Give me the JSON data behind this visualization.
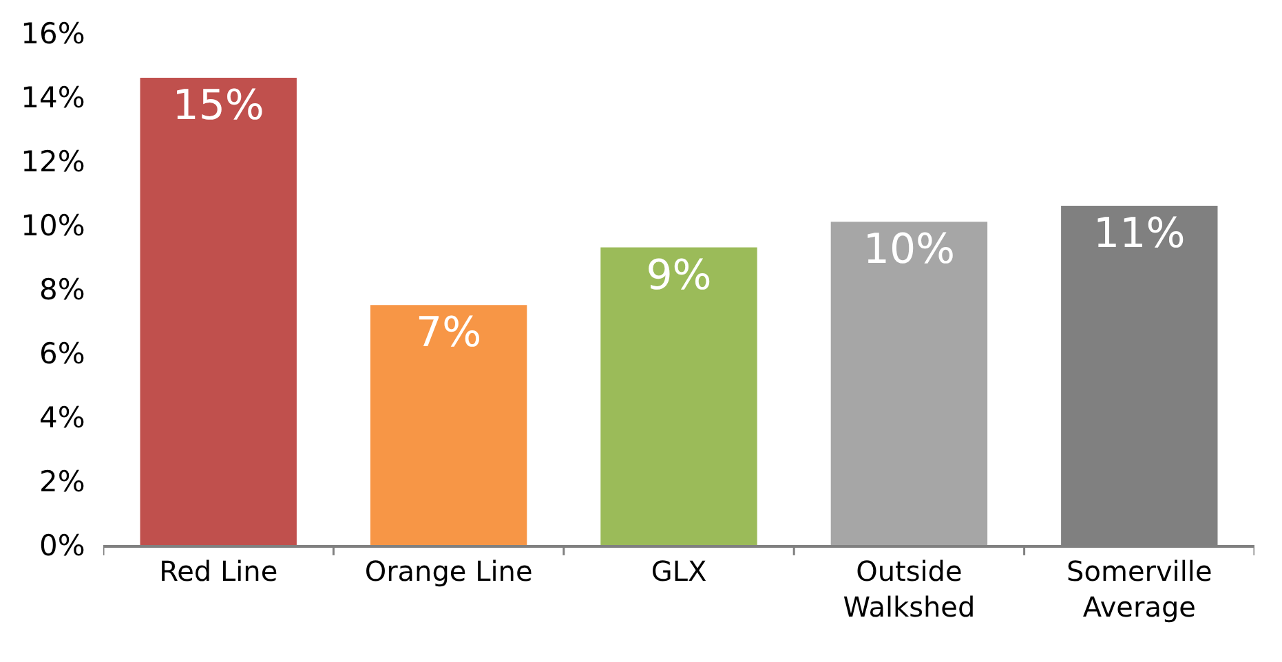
{
  "chart_data": {
    "type": "bar",
    "categories": [
      "Red Line",
      "Orange Line",
      "GLX",
      "Outside\nWalkshed",
      "Somerville\nAverage"
    ],
    "values": [
      14.6,
      7.5,
      9.3,
      10.1,
      10.6
    ],
    "colors": [
      "#c0504d",
      "#f79646",
      "#9bbb59",
      "#a6a6a6",
      "#808080"
    ],
    "value_labels": [
      "15%",
      "7%",
      "9%",
      "10%",
      "11%"
    ],
    "ylim": [
      0,
      16
    ],
    "yticks": [
      {
        "value": 0,
        "label": "0%"
      },
      {
        "value": 2,
        "label": "2%"
      },
      {
        "value": 4,
        "label": "4%"
      },
      {
        "value": 6,
        "label": "6%"
      },
      {
        "value": 8,
        "label": "8%"
      },
      {
        "value": 10,
        "label": "10%"
      },
      {
        "value": 12,
        "label": "12%"
      },
      {
        "value": 14,
        "label": "14%"
      },
      {
        "value": 16,
        "label": "16%"
      }
    ],
    "grid": false
  }
}
